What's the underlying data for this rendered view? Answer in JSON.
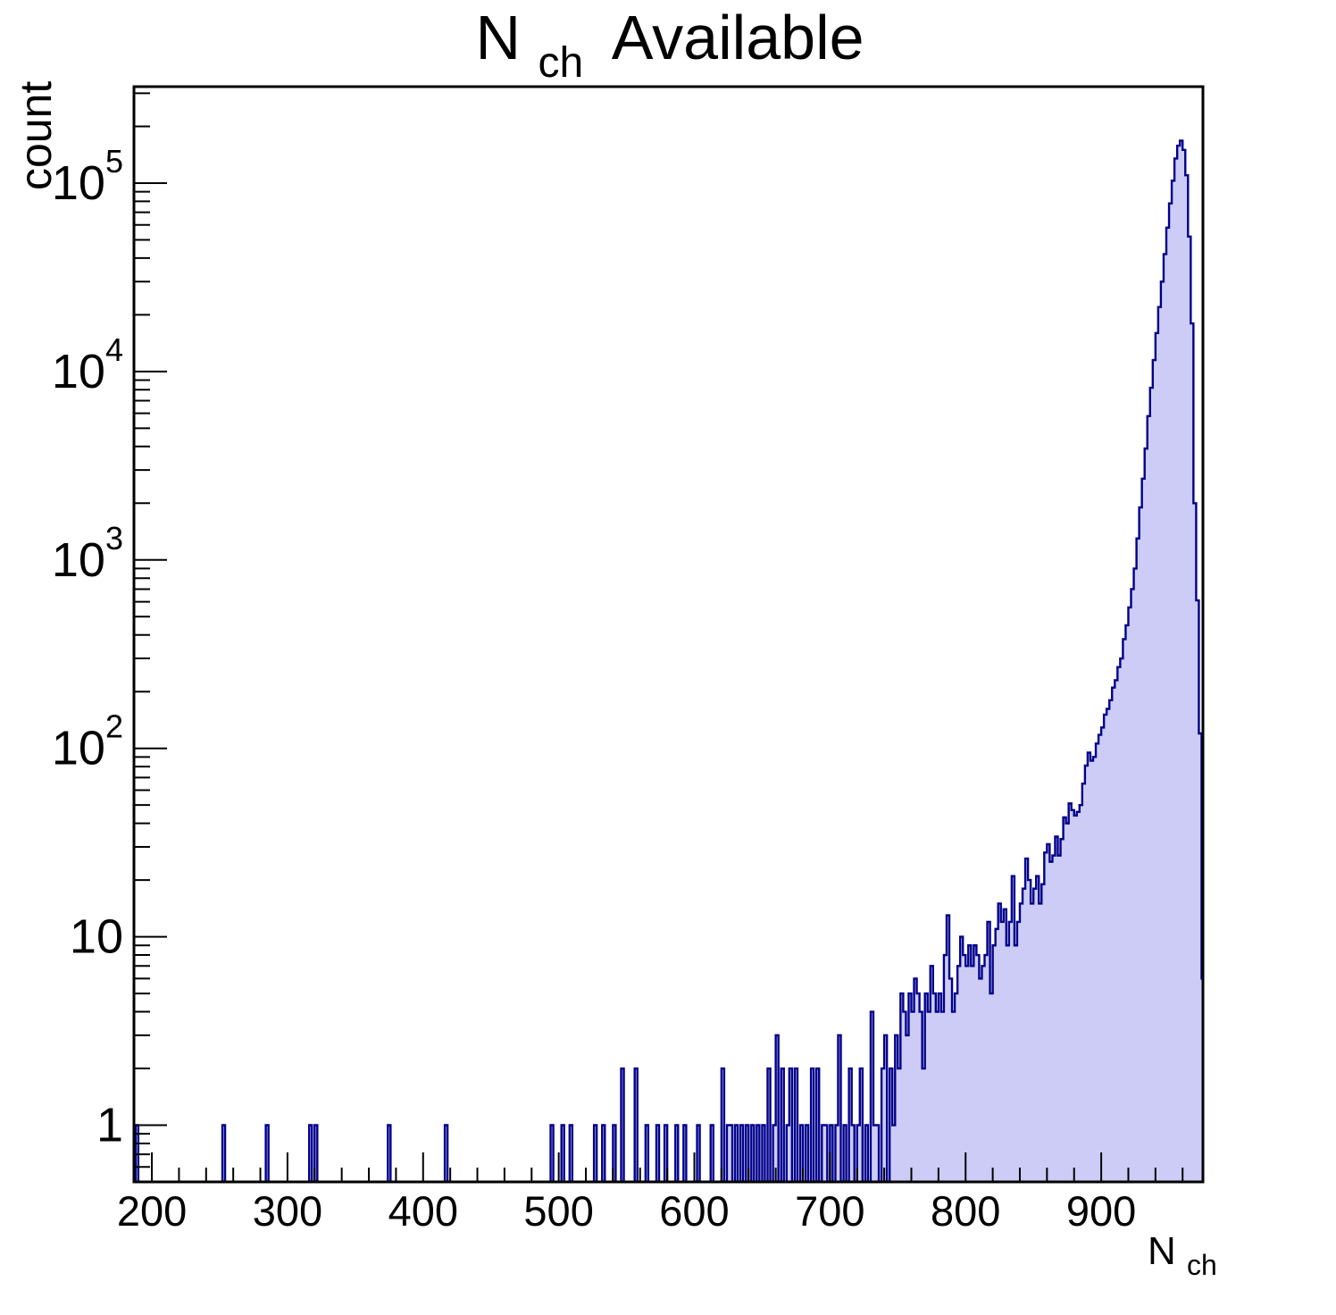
{
  "title": {
    "pre": "N",
    "sub": "ch",
    "post": "Available"
  },
  "y_axis": {
    "label": "count",
    "scale": "log",
    "tick_labels": [
      [
        "1",
        ""
      ],
      [
        "10",
        ""
      ],
      [
        "10",
        "2"
      ],
      [
        "10",
        "3"
      ],
      [
        "10",
        "4"
      ],
      [
        "10",
        "5"
      ]
    ]
  },
  "x_axis": {
    "label_base": "N",
    "label_sub": "ch",
    "ticks": [
      200,
      300,
      400,
      500,
      600,
      700,
      800,
      900
    ],
    "minor_step": 20
  },
  "colors": {
    "hist_fill": "#ccccf7",
    "hist_line": "#00008b",
    "frame": "#000000",
    "text": "#000000"
  },
  "chart_data": {
    "type": "bar",
    "subtype": "histogram-log-y",
    "title": "N_ch Available",
    "xlabel": "N_ch",
    "ylabel": "count",
    "x_scale": "linear",
    "y_scale": "log",
    "xlim": [
      186.8,
      975.0
    ],
    "ylim": [
      0.5,
      325000
    ],
    "bin_width": 2,
    "grid": false,
    "legend": "none",
    "bins": [
      [
        188,
        1
      ],
      [
        252,
        1
      ],
      [
        284,
        1
      ],
      [
        316,
        1
      ],
      [
        320,
        1
      ],
      [
        374,
        1
      ],
      [
        416,
        1
      ],
      [
        494,
        1
      ],
      [
        502,
        1
      ],
      [
        508,
        1
      ],
      [
        526,
        1
      ],
      [
        532,
        1
      ],
      [
        540,
        1
      ],
      [
        546,
        2
      ],
      [
        556,
        2
      ],
      [
        564,
        1
      ],
      [
        572,
        1
      ],
      [
        578,
        1
      ],
      [
        586,
        1
      ],
      [
        592,
        1
      ],
      [
        602,
        1
      ],
      [
        612,
        1
      ],
      [
        620,
        2
      ],
      [
        624,
        1
      ],
      [
        626,
        1
      ],
      [
        630,
        1
      ],
      [
        634,
        1
      ],
      [
        638,
        1
      ],
      [
        642,
        1
      ],
      [
        646,
        1
      ],
      [
        650,
        1
      ],
      [
        654,
        2
      ],
      [
        658,
        1
      ],
      [
        660,
        3
      ],
      [
        664,
        2
      ],
      [
        668,
        1
      ],
      [
        670,
        2
      ],
      [
        674,
        2
      ],
      [
        678,
        1
      ],
      [
        682,
        1
      ],
      [
        686,
        2
      ],
      [
        690,
        2
      ],
      [
        694,
        1
      ],
      [
        696,
        1
      ],
      [
        700,
        1
      ],
      [
        704,
        1
      ],
      [
        706,
        3
      ],
      [
        710,
        1
      ],
      [
        714,
        2
      ],
      [
        716,
        1
      ],
      [
        720,
        1
      ],
      [
        722,
        2
      ],
      [
        726,
        1
      ],
      [
        730,
        4
      ],
      [
        732,
        1
      ],
      [
        734,
        1
      ],
      [
        738,
        2
      ],
      [
        740,
        3
      ],
      [
        744,
        2
      ],
      [
        746,
        1
      ],
      [
        748,
        3
      ],
      [
        750,
        2
      ],
      [
        752,
        5
      ],
      [
        754,
        4
      ],
      [
        756,
        3
      ],
      [
        758,
        5
      ],
      [
        760,
        4
      ],
      [
        762,
        6
      ],
      [
        764,
        5
      ],
      [
        766,
        4
      ],
      [
        768,
        2
      ],
      [
        770,
        5
      ],
      [
        772,
        4
      ],
      [
        774,
        7
      ],
      [
        776,
        5
      ],
      [
        778,
        4
      ],
      [
        780,
        5
      ],
      [
        782,
        4
      ],
      [
        784,
        8
      ],
      [
        786,
        13
      ],
      [
        788,
        6
      ],
      [
        790,
        4
      ],
      [
        792,
        5
      ],
      [
        794,
        7
      ],
      [
        796,
        10
      ],
      [
        798,
        8
      ],
      [
        800,
        7
      ],
      [
        802,
        9
      ],
      [
        804,
        7
      ],
      [
        806,
        9
      ],
      [
        808,
        8
      ],
      [
        810,
        6
      ],
      [
        812,
        7
      ],
      [
        814,
        8
      ],
      [
        816,
        12
      ],
      [
        818,
        5
      ],
      [
        820,
        9
      ],
      [
        822,
        11
      ],
      [
        824,
        15
      ],
      [
        826,
        12
      ],
      [
        828,
        14
      ],
      [
        830,
        9
      ],
      [
        832,
        12
      ],
      [
        834,
        21
      ],
      [
        836,
        9
      ],
      [
        838,
        12
      ],
      [
        840,
        15
      ],
      [
        842,
        18
      ],
      [
        844,
        26
      ],
      [
        846,
        20
      ],
      [
        848,
        15
      ],
      [
        850,
        18
      ],
      [
        852,
        21
      ],
      [
        854,
        15
      ],
      [
        856,
        19
      ],
      [
        858,
        28
      ],
      [
        860,
        31
      ],
      [
        862,
        25
      ],
      [
        864,
        27
      ],
      [
        866,
        34
      ],
      [
        868,
        27
      ],
      [
        870,
        33
      ],
      [
        872,
        43
      ],
      [
        874,
        40
      ],
      [
        876,
        51
      ],
      [
        878,
        47
      ],
      [
        880,
        44
      ],
      [
        882,
        46
      ],
      [
        884,
        50
      ],
      [
        886,
        65
      ],
      [
        888,
        81
      ],
      [
        890,
        95
      ],
      [
        892,
        86
      ],
      [
        894,
        90
      ],
      [
        896,
        106
      ],
      [
        898,
        118
      ],
      [
        900,
        129
      ],
      [
        902,
        151
      ],
      [
        904,
        162
      ],
      [
        906,
        180
      ],
      [
        908,
        210
      ],
      [
        910,
        230
      ],
      [
        912,
        270
      ],
      [
        914,
        300
      ],
      [
        916,
        380
      ],
      [
        918,
        450
      ],
      [
        920,
        560
      ],
      [
        922,
        700
      ],
      [
        924,
        900
      ],
      [
        926,
        1300
      ],
      [
        928,
        1900
      ],
      [
        930,
        2700
      ],
      [
        932,
        3900
      ],
      [
        934,
        5800
      ],
      [
        936,
        8200
      ],
      [
        938,
        11500
      ],
      [
        940,
        16000
      ],
      [
        942,
        22000
      ],
      [
        944,
        30000
      ],
      [
        946,
        42000
      ],
      [
        948,
        58000
      ],
      [
        950,
        78000
      ],
      [
        952,
        103000
      ],
      [
        954,
        135000
      ],
      [
        956,
        158000
      ],
      [
        958,
        168000
      ],
      [
        960,
        150000
      ],
      [
        962,
        110000
      ],
      [
        964,
        52000
      ],
      [
        966,
        18000
      ],
      [
        968,
        2000
      ],
      [
        970,
        610
      ],
      [
        972,
        120
      ],
      [
        974,
        6
      ]
    ]
  }
}
